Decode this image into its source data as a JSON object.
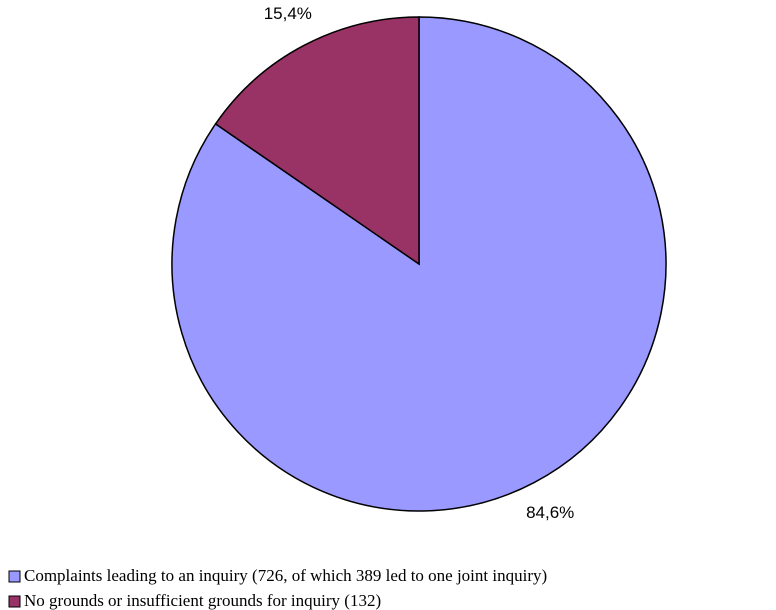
{
  "chart_data": {
    "type": "pie",
    "categories": [
      "Complaints leading to an inquiry (726, of which 389 led to one joint inquiry)",
      "No grounds or insufficient grounds for inquiry (132)"
    ],
    "values": [
      84.6,
      15.4
    ],
    "value_labels": [
      "84,6%",
      "15,4%"
    ],
    "colors": [
      "#9999ff",
      "#993366"
    ]
  }
}
